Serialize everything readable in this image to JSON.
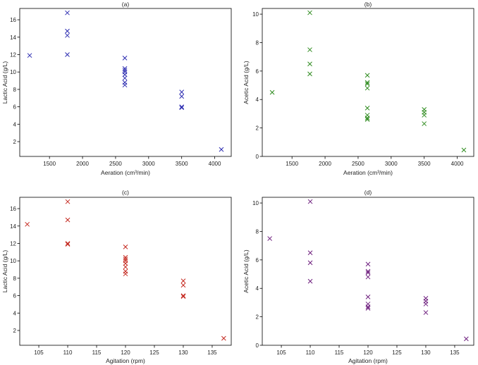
{
  "chart_data": [
    {
      "panel": "(a)",
      "type": "scatter",
      "title": "(a)",
      "xlabel": "Aeration (cm³/min)",
      "ylabel": "Lactic Acid (g/L)",
      "xlim": [
        1050,
        4250
      ],
      "ylim": [
        0.3,
        17.3
      ],
      "xticks": [
        1500,
        2000,
        2500,
        3000,
        3500,
        4000
      ],
      "yticks": [
        2,
        4,
        6,
        8,
        10,
        12,
        14,
        16
      ],
      "color": "#2b2bb0",
      "marker": "x",
      "points": [
        [
          1200,
          11.9
        ],
        [
          1770,
          16.8
        ],
        [
          1770,
          14.7
        ],
        [
          1770,
          14.2
        ],
        [
          1770,
          12.0
        ],
        [
          2640,
          11.6
        ],
        [
          2640,
          10.4
        ],
        [
          2640,
          10.2
        ],
        [
          2640,
          10.0
        ],
        [
          2640,
          9.7
        ],
        [
          2640,
          9.3
        ],
        [
          2640,
          8.8
        ],
        [
          2640,
          8.5
        ],
        [
          3500,
          7.7
        ],
        [
          3500,
          7.2
        ],
        [
          3500,
          6.0
        ],
        [
          3500,
          5.9
        ],
        [
          4100,
          1.1
        ]
      ]
    },
    {
      "panel": "(b)",
      "type": "scatter",
      "title": "(b)",
      "xlabel": "Aeration (cm³/min)",
      "ylabel": "Acetic Acid (g/L)",
      "xlim": [
        1050,
        4250
      ],
      "ylim": [
        0,
        10.4
      ],
      "xticks": [
        1500,
        2000,
        2500,
        3000,
        3500,
        4000
      ],
      "yticks": [
        0,
        2,
        4,
        6,
        8,
        10
      ],
      "color": "#2e8b1e",
      "marker": "x",
      "points": [
        [
          1200,
          4.5
        ],
        [
          1770,
          10.1
        ],
        [
          1770,
          7.5
        ],
        [
          1770,
          6.5
        ],
        [
          1770,
          5.8
        ],
        [
          2640,
          5.7
        ],
        [
          2640,
          5.2
        ],
        [
          2640,
          5.1
        ],
        [
          2640,
          4.8
        ],
        [
          2640,
          3.4
        ],
        [
          2640,
          2.9
        ],
        [
          2640,
          2.7
        ],
        [
          2640,
          2.6
        ],
        [
          3500,
          3.3
        ],
        [
          3500,
          3.1
        ],
        [
          3500,
          2.9
        ],
        [
          3500,
          2.3
        ],
        [
          4100,
          0.45
        ]
      ]
    },
    {
      "panel": "(c)",
      "type": "scatter",
      "title": "(c)",
      "xlabel": "Agitation (rpm)",
      "ylabel": "Lactic Acid (g/L)",
      "xlim": [
        101.7,
        138.3
      ],
      "ylim": [
        0.3,
        17.3
      ],
      "xticks": [
        105,
        110,
        115,
        120,
        125,
        130,
        135
      ],
      "yticks": [
        2,
        4,
        6,
        8,
        10,
        12,
        14,
        16
      ],
      "color": "#c4281f",
      "marker": "x",
      "points": [
        [
          103,
          14.2
        ],
        [
          110,
          16.8
        ],
        [
          110,
          14.7
        ],
        [
          110,
          12.0
        ],
        [
          110,
          11.9
        ],
        [
          120,
          11.6
        ],
        [
          120,
          10.4
        ],
        [
          120,
          10.2
        ],
        [
          120,
          10.0
        ],
        [
          120,
          9.7
        ],
        [
          120,
          9.3
        ],
        [
          120,
          8.8
        ],
        [
          120,
          8.5
        ],
        [
          130,
          7.7
        ],
        [
          130,
          7.2
        ],
        [
          130,
          6.0
        ],
        [
          130,
          5.9
        ],
        [
          137,
          1.1
        ]
      ]
    },
    {
      "panel": "(d)",
      "type": "scatter",
      "title": "(d)",
      "xlabel": "Agitation (rpm)",
      "ylabel": "Acetic Acid (g/L)",
      "xlim": [
        101.7,
        138.3
      ],
      "ylim": [
        0,
        10.4
      ],
      "xticks": [
        105,
        110,
        115,
        120,
        125,
        130,
        135
      ],
      "yticks": [
        0,
        2,
        4,
        6,
        8,
        10
      ],
      "color": "#6e1f7e",
      "marker": "x",
      "points": [
        [
          103,
          7.5
        ],
        [
          110,
          10.1
        ],
        [
          110,
          6.5
        ],
        [
          110,
          5.8
        ],
        [
          110,
          4.5
        ],
        [
          120,
          5.7
        ],
        [
          120,
          5.2
        ],
        [
          120,
          5.1
        ],
        [
          120,
          4.8
        ],
        [
          120,
          3.4
        ],
        [
          120,
          2.9
        ],
        [
          120,
          2.7
        ],
        [
          120,
          2.6
        ],
        [
          130,
          3.3
        ],
        [
          130,
          3.1
        ],
        [
          130,
          2.9
        ],
        [
          130,
          2.3
        ],
        [
          137,
          0.45
        ]
      ]
    }
  ]
}
